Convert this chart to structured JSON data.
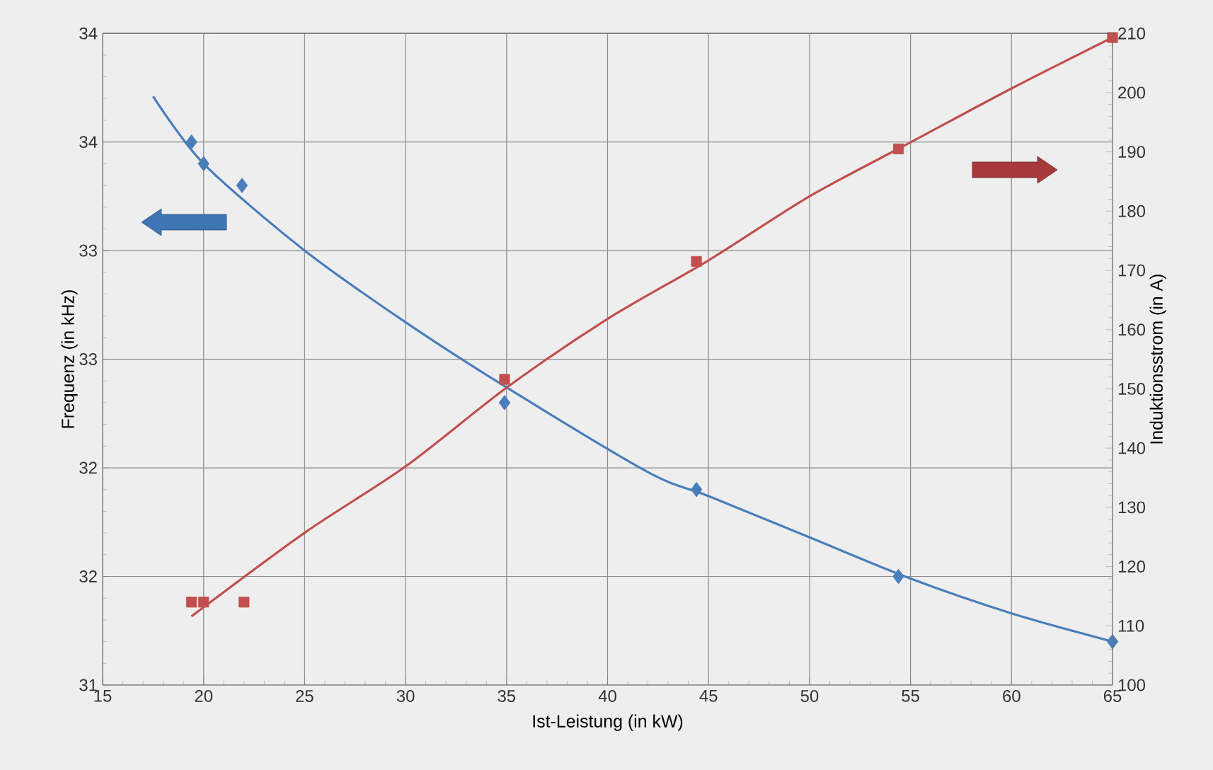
{
  "chart_data": {
    "type": "scatter",
    "xlabel": "Ist-Leistung (in kW)",
    "ylabel": "Frequenz (in kHz)",
    "y2label": "Induktionsstrom (in A)",
    "xlim": [
      15,
      65
    ],
    "xticks": [
      15,
      20,
      25,
      30,
      35,
      40,
      45,
      50,
      55,
      60,
      65
    ],
    "ylim": [
      31,
      34
    ],
    "yticks": [
      31,
      {
        "value": 31.5,
        "label": "32"
      },
      32,
      {
        "value": 32.5,
        "label": "33"
      },
      33,
      {
        "value": 33.5,
        "label": "34"
      },
      34
    ],
    "y2lim": [
      100,
      210
    ],
    "y2ticks": [
      100,
      110,
      120,
      130,
      140,
      150,
      160,
      170,
      180,
      190,
      200,
      210
    ],
    "grid": true,
    "series": [
      {
        "marker": "diamond",
        "color": "#4a7ebb",
        "x": [
          19.4,
          20.0,
          21.9,
          34.9,
          44.4,
          54.4,
          65.0
        ],
        "values": [
          33.5,
          33.4,
          33.3,
          32.3,
          31.9,
          31.5,
          31.2
        ]
      },
      {
        "type": "line",
        "marker": "none",
        "color": "#4a7ebb",
        "x": [
          17.5,
          20,
          25,
          30,
          35,
          42,
          45,
          50,
          55,
          60,
          65
        ],
        "values": [
          33.71,
          33.4,
          33.0,
          32.67,
          32.37,
          31.98,
          31.87,
          31.68,
          31.49,
          31.33,
          31.2
        ]
      },
      {
        "marker": "square",
        "color": "#c0504d",
        "axis": "y2",
        "x": [
          19.4,
          20.0,
          22.0,
          34.9,
          44.4,
          54.4,
          65.0
        ],
        "values": [
          114,
          114,
          114,
          151.6,
          171.5,
          190.5,
          209.3
        ]
      },
      {
        "type": "line",
        "marker": "none",
        "color": "#c0504d",
        "axis": "y2",
        "x": [
          19.4,
          25,
          30,
          35,
          40,
          45,
          50,
          55,
          60,
          65
        ],
        "values": [
          111.6,
          125.7,
          136.9,
          150.2,
          161.8,
          171.7,
          182.5,
          191.6,
          200.7,
          209.3
        ]
      }
    ]
  }
}
